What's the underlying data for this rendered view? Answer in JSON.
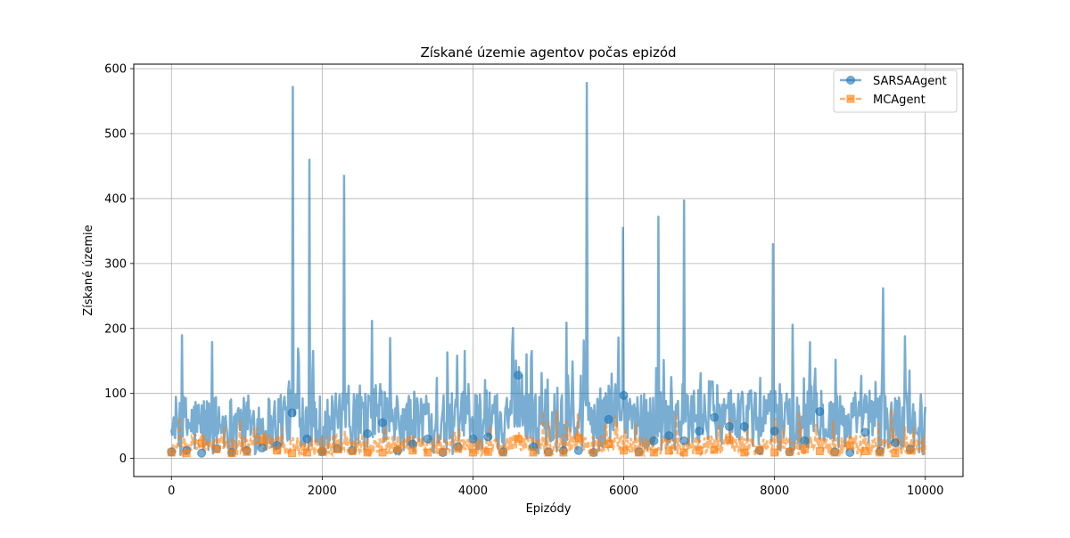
{
  "chart_data": {
    "type": "line",
    "title": "Získané územie agentov počas epizód",
    "xlabel": "Epizódy",
    "ylabel": "Získané územie",
    "xlim": [
      -500,
      10500
    ],
    "ylim": [
      -28,
      607
    ],
    "xticks": [
      0,
      2000,
      4000,
      6000,
      8000,
      10000
    ],
    "yticks": [
      0,
      100,
      200,
      300,
      400,
      500,
      600
    ],
    "grid": true,
    "legend": "top-right",
    "series": [
      {
        "name": "SARSAAgent",
        "color": "#1f77b4",
        "marker": "circle",
        "linestyle": "solid",
        "x": [
          0,
          200,
          400,
          600,
          800,
          1000,
          1200,
          1400,
          1600,
          1800,
          2000,
          2200,
          2400,
          2600,
          2800,
          3000,
          3200,
          3400,
          3600,
          3800,
          4000,
          4200,
          4400,
          4600,
          4800,
          5000,
          5200,
          5400,
          5600,
          5800,
          6000,
          6200,
          6400,
          6600,
          6800,
          7000,
          7200,
          7400,
          7600,
          7800,
          8000,
          8200,
          8400,
          8600,
          8800,
          9000,
          9200,
          9400,
          9600,
          9800
        ],
        "y": [
          10,
          12,
          8,
          15,
          9,
          12,
          16,
          20,
          70,
          30,
          10,
          15,
          12,
          38,
          55,
          12,
          22,
          30,
          9,
          18,
          30,
          33,
          10,
          128,
          18,
          10,
          12,
          12,
          9,
          60,
          97,
          10,
          27,
          35,
          27,
          42,
          63,
          49,
          49,
          12,
          42,
          10,
          27,
          72,
          10,
          9,
          40,
          11,
          24,
          14
        ],
        "peaks": {
          "x": [
            1610,
            1830,
            2290,
            5510,
            5990,
            6460,
            6800,
            7980,
            9440
          ],
          "y": [
            572,
            460,
            435,
            578,
            355,
            372,
            397,
            330,
            262
          ]
        }
      },
      {
        "name": "MCAgent",
        "color": "#ff7f0e",
        "marker": "square",
        "linestyle": "dashed",
        "x": [
          0,
          200,
          400,
          600,
          800,
          1000,
          1200,
          1400,
          1600,
          1800,
          2000,
          2200,
          2400,
          2600,
          2800,
          3000,
          3200,
          3400,
          3600,
          3800,
          4000,
          4200,
          4400,
          4600,
          4800,
          5000,
          5200,
          5400,
          5600,
          5800,
          6000,
          6200,
          6400,
          6600,
          6800,
          7000,
          7200,
          7400,
          7600,
          7800,
          8000,
          8200,
          8400,
          8600,
          8800,
          9000,
          9200,
          9400,
          9600,
          9800
        ],
        "y": [
          9,
          8,
          23,
          14,
          8,
          10,
          28,
          12,
          8,
          9,
          10,
          14,
          11,
          9,
          9,
          15,
          12,
          9,
          10,
          15,
          9,
          10,
          9,
          30,
          9,
          9,
          9,
          31,
          9,
          22,
          12,
          9,
          9,
          12,
          9,
          12,
          13,
          28,
          9,
          13,
          9,
          10,
          14,
          11,
          9,
          20,
          11,
          9,
          8,
          12
        ]
      }
    ]
  }
}
